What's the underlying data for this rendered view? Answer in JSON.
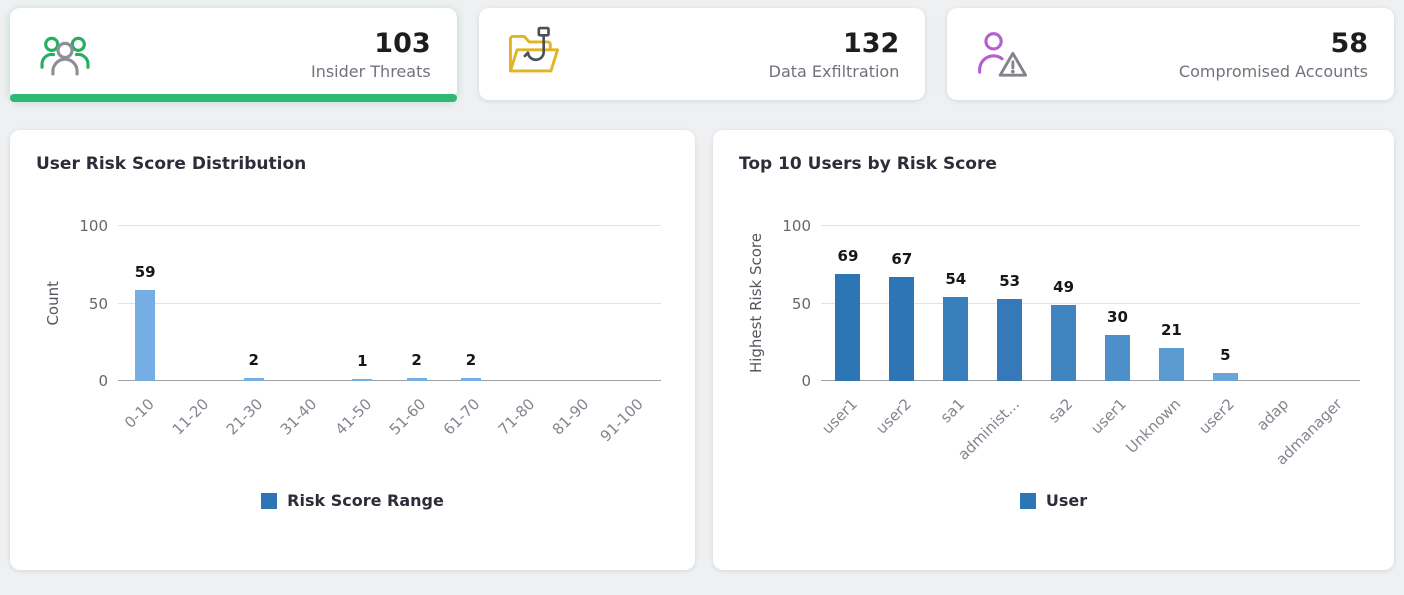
{
  "theme": {
    "background": "#eef0f2",
    "card_background": "#ffffff",
    "accent_green": "#2eb873",
    "accent_yellow": "#e3b324",
    "accent_purple": "#b55fd0",
    "legend_blue": "#2e75b6"
  },
  "stat_cards": [
    {
      "value": "103",
      "label": "Insider Threats",
      "icon": "group-icon",
      "active": true
    },
    {
      "value": "132",
      "label": "Data Exfiltration",
      "icon": "folder-hook-icon",
      "active": false
    },
    {
      "value": "58",
      "label": "Compromised Accounts",
      "icon": "person-warning-icon",
      "active": false
    }
  ],
  "chart_data": [
    {
      "type": "bar",
      "title": "User Risk Score Distribution",
      "ylabel": "Count",
      "legend": "Risk Score Range",
      "categories": [
        "0-10",
        "11-20",
        "21-30",
        "31-40",
        "41-50",
        "51-60",
        "61-70",
        "71-80",
        "81-90",
        "91-100"
      ],
      "values": [
        59,
        0,
        2,
        0,
        1,
        2,
        2,
        0,
        0,
        0
      ],
      "ymax": 100,
      "yticks": [
        0,
        50,
        100
      ],
      "bar_color": "#74aee3",
      "legend_color": "#2e75b6",
      "grid": true,
      "legend_position": "bottom-center"
    },
    {
      "type": "bar",
      "title": "Top 10 Users by Risk Score",
      "ylabel": "Highest Risk Score",
      "legend": "User",
      "categories": [
        "user1",
        "user2",
        "sa1",
        "administ...",
        "sa2",
        "user1",
        "Unknown",
        "user2",
        "adap",
        "admanager"
      ],
      "values": [
        69,
        67,
        54,
        53,
        49,
        30,
        21,
        5,
        0,
        0
      ],
      "ymax": 100,
      "yticks": [
        0,
        50,
        100
      ],
      "bar_colors": [
        "#2e75b6",
        "#2e75b6",
        "#3a7fbd",
        "#3579b9",
        "#4084c0",
        "#4d8fc8",
        "#5b9ad0",
        "#69a5d9",
        "#74aee3",
        "#74aee3"
      ],
      "legend_color": "#2e75b6",
      "grid": true,
      "legend_position": "bottom-center"
    }
  ]
}
